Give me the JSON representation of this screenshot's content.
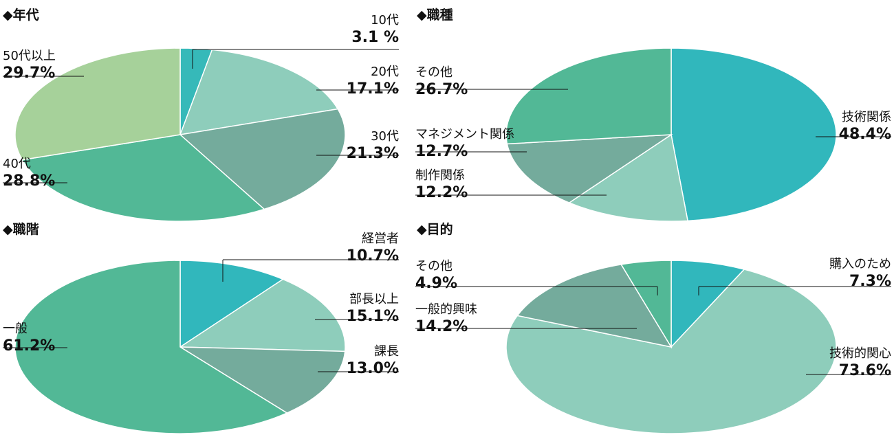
{
  "chart_data": [
    {
      "type": "pie",
      "title": "◆年代",
      "categories": [
        "10代",
        "20代",
        "30代",
        "40代",
        "50代以上"
      ],
      "values": [
        3.1,
        17.1,
        21.3,
        28.8,
        29.7
      ],
      "value_labels": [
        "3.1 %",
        "17.1%",
        "21.3%",
        "28.8%",
        "29.7%"
      ],
      "colors": [
        "#36b9b9",
        "#8ecdbb",
        "#74ab9c",
        "#52b896",
        "#a6d19a"
      ],
      "legend": "none"
    },
    {
      "type": "pie",
      "title": "◆職種",
      "categories": [
        "技術関係",
        "制作関係",
        "マネジメント関係",
        "その他"
      ],
      "values": [
        48.4,
        12.2,
        12.7,
        26.7
      ],
      "value_labels": [
        "48.4%",
        "12.2%",
        "12.7%",
        "26.7%"
      ],
      "colors": [
        "#31b7bc",
        "#8ecdbb",
        "#74ab9c",
        "#52b896"
      ],
      "legend": "none"
    },
    {
      "type": "pie",
      "title": "◆職階",
      "categories": [
        "経営者",
        "部長以上",
        "課長",
        "一般"
      ],
      "values": [
        10.7,
        15.1,
        13.0,
        61.2
      ],
      "value_labels": [
        "10.7%",
        "15.1%",
        "13.0%",
        "61.2%"
      ],
      "colors": [
        "#31b7bc",
        "#8ecdbb",
        "#74ab9c",
        "#52b896"
      ],
      "legend": "none"
    },
    {
      "type": "pie",
      "title": "◆目的",
      "categories": [
        "購入のため",
        "技術的関心",
        "一般的興味",
        "その他"
      ],
      "values": [
        7.3,
        73.6,
        14.2,
        4.9
      ],
      "value_labels": [
        "7.3%",
        "73.6%",
        "14.2%",
        "4.9%"
      ],
      "colors": [
        "#31b7bc",
        "#8ecdbb",
        "#74ab9c",
        "#52b896"
      ],
      "legend": "none"
    }
  ]
}
